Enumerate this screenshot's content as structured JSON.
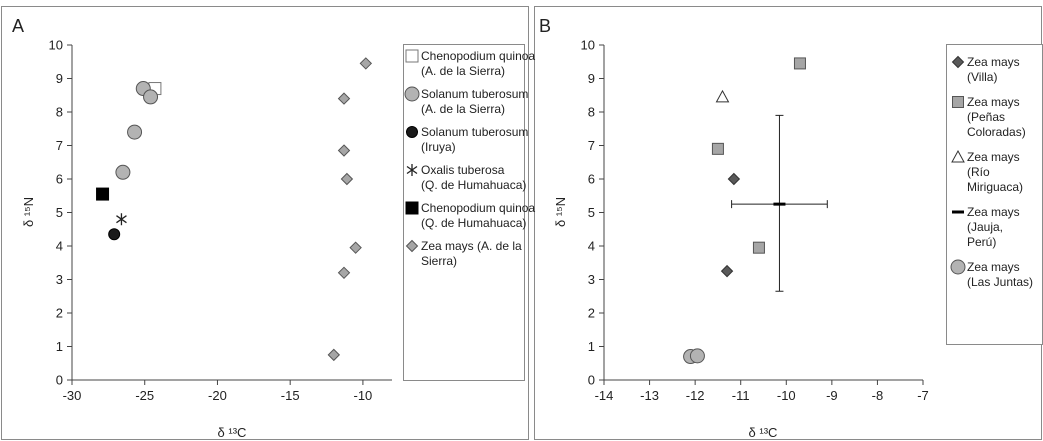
{
  "chart_data": [
    {
      "panel_label": "A",
      "type": "scatter",
      "xlabel": "δ ¹³C",
      "ylabel": "δ ¹⁵N",
      "xlim": [
        -30,
        -8
      ],
      "ylim": [
        0,
        10
      ],
      "xticks": [
        "-30",
        "-25",
        "-20",
        "-15",
        "-10"
      ],
      "yticks": [
        "0",
        "1",
        "2",
        "3",
        "4",
        "5",
        "6",
        "7",
        "8",
        "9",
        "10"
      ],
      "grid": false,
      "legend_position": "right",
      "series": [
        {
          "name": "Chenopodium quinoa (A. de la Sierra)",
          "marker": "open-square",
          "color": "#ffffff",
          "points": [
            {
              "x": -24.3,
              "y": 8.7
            }
          ]
        },
        {
          "name": "Solanum tuberosum (A. de la Sierra)",
          "marker": "gray-circle",
          "color": "#b3b3b3",
          "points": [
            {
              "x": -25.1,
              "y": 8.7
            },
            {
              "x": -24.6,
              "y": 8.45
            },
            {
              "x": -25.7,
              "y": 7.4
            },
            {
              "x": -26.5,
              "y": 6.2
            }
          ]
        },
        {
          "name": "Solanum tuberosum (Iruya)",
          "marker": "black-circle",
          "color": "#1a1a1a",
          "points": [
            {
              "x": -27.1,
              "y": 4.35
            }
          ]
        },
        {
          "name": "Oxalis tuberosa (Q. de Humahuaca)",
          "marker": "asterisk",
          "color": "#333333",
          "points": [
            {
              "x": -26.6,
              "y": 4.8
            }
          ]
        },
        {
          "name": "Chenopodium quinoa (Q. de Humahuaca)",
          "marker": "black-square",
          "color": "#000000",
          "points": [
            {
              "x": -27.9,
              "y": 5.55
            }
          ]
        },
        {
          "name": "Zea mays (A. de la Sierra)",
          "marker": "gray-diamond",
          "color": "#a6a6a6",
          "points": [
            {
              "x": -9.8,
              "y": 9.45
            },
            {
              "x": -11.3,
              "y": 8.4
            },
            {
              "x": -11.3,
              "y": 6.85
            },
            {
              "x": -11.1,
              "y": 6.0
            },
            {
              "x": -10.5,
              "y": 3.95
            },
            {
              "x": -11.3,
              "y": 3.2
            },
            {
              "x": -12.0,
              "y": 0.75
            }
          ]
        }
      ]
    },
    {
      "panel_label": "B",
      "type": "scatter",
      "xlabel": "δ ¹³C",
      "ylabel": "δ ¹⁵N",
      "xlim": [
        -14,
        -7
      ],
      "ylim": [
        0,
        10
      ],
      "xticks": [
        "-14",
        "-13",
        "-12",
        "-11",
        "-10",
        "-9",
        "-8",
        "-7"
      ],
      "yticks": [
        "0",
        "1",
        "2",
        "3",
        "4",
        "5",
        "6",
        "7",
        "8",
        "9",
        "10"
      ],
      "grid": false,
      "legend_position": "right",
      "series": [
        {
          "name": "Zea mays (Villa)",
          "marker": "dark-diamond",
          "color": "#595959",
          "points": [
            {
              "x": -11.15,
              "y": 6.0
            },
            {
              "x": -11.3,
              "y": 3.25
            }
          ]
        },
        {
          "name": "Zea mays (Peñas Coloradas)",
          "marker": "gray-square",
          "color": "#a6a6a6",
          "points": [
            {
              "x": -9.7,
              "y": 9.45
            },
            {
              "x": -11.5,
              "y": 6.9
            },
            {
              "x": -10.6,
              "y": 3.95
            }
          ]
        },
        {
          "name": "Zea mays (Río Miriguaca)",
          "marker": "open-triangle",
          "color": "#ffffff",
          "points": [
            {
              "x": -11.4,
              "y": 8.45
            }
          ]
        },
        {
          "name": "Zea mays (Jauja, Perú)",
          "marker": "bar-errorbars",
          "color": "#000000",
          "points": [
            {
              "x": -10.15,
              "y": 5.25,
              "x_err": 1.05,
              "y_low": 2.65,
              "y_high": 7.9
            }
          ]
        },
        {
          "name": "Zea mays (Las Juntas)",
          "marker": "gray-circle",
          "color": "#b3b3b3",
          "points": [
            {
              "x": -12.1,
              "y": 0.7
            },
            {
              "x": -11.95,
              "y": 0.72
            }
          ]
        }
      ]
    }
  ]
}
